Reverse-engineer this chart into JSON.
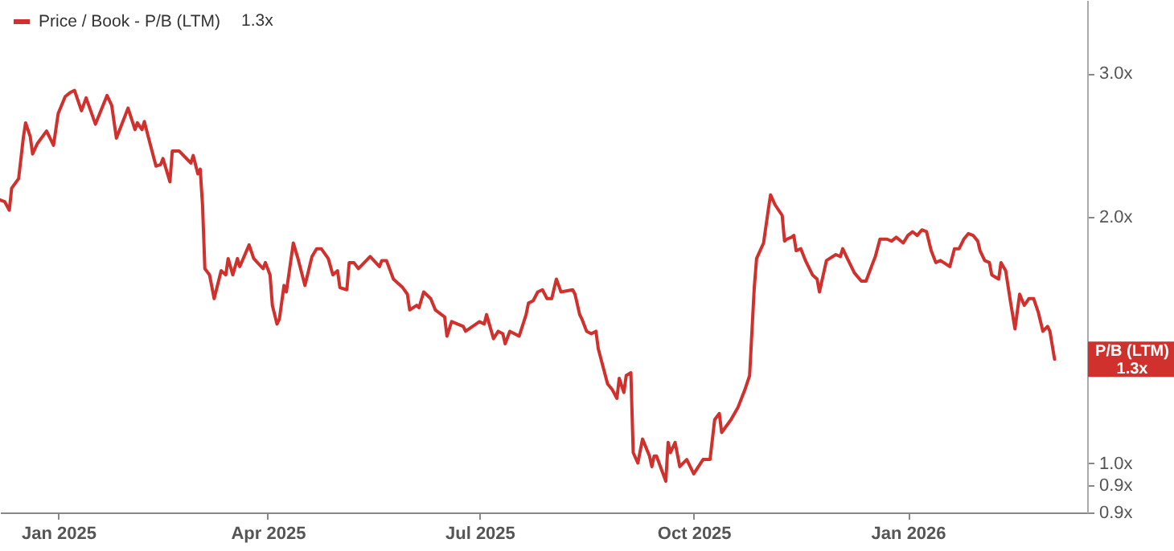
{
  "chart_data": {
    "type": "line",
    "log": "y",
    "legend": "top left",
    "xlim": [
      "2024-12-07",
      "2026-03-19"
    ],
    "xticks": [
      {
        "value": "2025-01-01",
        "label": "Jan 2025"
      },
      {
        "value": "2025-04-01",
        "label": "Apr 2025"
      },
      {
        "value": "2025-07-01",
        "label": "Jul 2025"
      },
      {
        "value": "2025-10-01",
        "label": "Oct 2025"
      },
      {
        "value": "2026-01-01",
        "label": "Jan 2026"
      }
    ],
    "ylim": [
      0.87,
      3.69
    ],
    "yticks": [
      {
        "value": 0.87,
        "label": "0.9x"
      },
      {
        "value": 0.94,
        "label": "0.9x"
      },
      {
        "value": 1,
        "label": "1.0x"
      },
      {
        "value": 2,
        "label": "2.0x"
      },
      {
        "value": 3,
        "label": "3.0x"
      }
    ],
    "annotations": [
      "1.3x",
      {
        "text": "P/B (LTM)\n1.3x",
        "x": "2026-03-05",
        "y": 1.34
      }
    ],
    "series": [
      {
        "name": "Price / Book - P/B (LTM)",
        "color": "#d0312d",
        "x": [
          "2024-12-07",
          "2024-12-09",
          "2024-12-11",
          "2024-12-12",
          "2024-12-15",
          "2024-12-17",
          "2024-12-18",
          "2024-12-20",
          "2024-12-21",
          "2024-12-23",
          "2024-12-27",
          "2024-12-30",
          "2025-01-01",
          "2025-01-04",
          "2025-01-06",
          "2025-01-08",
          "2025-01-11",
          "2025-01-13",
          "2025-01-17",
          "2025-01-22",
          "2025-01-24",
          "2025-01-26",
          "2025-01-31",
          "2025-02-03",
          "2025-02-04",
          "2025-02-06",
          "2025-02-07",
          "2025-02-09",
          "2025-02-12",
          "2025-02-14",
          "2025-02-15",
          "2025-02-18",
          "2025-02-19",
          "2025-02-22",
          "2025-02-27",
          "2025-02-28",
          "2025-03-02",
          "2025-03-03",
          "2025-03-04",
          "2025-03-05",
          "2025-03-07",
          "2025-03-09",
          "2025-03-12",
          "2025-03-14",
          "2025-03-15",
          "2025-03-17",
          "2025-03-19",
          "2025-03-20",
          "2025-03-24",
          "2025-03-26",
          "2025-03-30",
          "2025-03-31",
          "2025-04-02",
          "2025-04-03",
          "2025-04-05",
          "2025-04-06",
          "2025-04-08",
          "2025-04-09",
          "2025-04-12",
          "2025-04-14",
          "2025-04-17",
          "2025-04-20",
          "2025-04-22",
          "2025-04-24",
          "2025-04-27",
          "2025-04-29",
          "2025-05-01",
          "2025-05-02",
          "2025-05-05",
          "2025-05-06",
          "2025-05-08",
          "2025-05-10",
          "2025-05-15",
          "2025-05-19",
          "2025-05-20",
          "2025-05-22",
          "2025-05-25",
          "2025-05-29",
          "2025-05-31",
          "2025-06-01",
          "2025-06-04",
          "2025-06-05",
          "2025-06-07",
          "2025-06-10",
          "2025-06-12",
          "2025-06-16",
          "2025-06-17",
          "2025-06-19",
          "2025-06-24",
          "2025-06-25",
          "2025-07-01",
          "2025-07-03",
          "2025-07-04",
          "2025-07-07",
          "2025-07-09",
          "2025-07-11",
          "2025-07-12",
          "2025-07-14",
          "2025-07-18",
          "2025-07-21",
          "2025-07-22",
          "2025-07-24",
          "2025-07-26",
          "2025-07-28",
          "2025-07-30",
          "2025-08-01",
          "2025-08-03",
          "2025-08-05",
          "2025-08-10",
          "2025-08-11",
          "2025-08-13",
          "2025-08-14",
          "2025-08-16",
          "2025-08-18",
          "2025-08-20",
          "2025-08-21",
          "2025-08-25",
          "2025-08-27",
          "2025-08-29",
          "2025-08-30",
          "2025-09-01",
          "2025-09-02",
          "2025-09-04",
          "2025-09-05",
          "2025-09-07",
          "2025-09-09",
          "2025-09-12",
          "2025-09-13",
          "2025-09-14",
          "2025-09-15",
          "2025-09-19",
          "2025-09-20",
          "2025-09-21",
          "2025-09-23",
          "2025-09-25",
          "2025-09-28",
          "2025-10-01",
          "2025-10-05",
          "2025-10-08",
          "2025-10-10",
          "2025-10-12",
          "2025-10-13",
          "2025-10-17",
          "2025-10-20",
          "2025-10-23",
          "2025-10-25",
          "2025-10-27",
          "2025-10-28",
          "2025-10-31",
          "2025-11-02",
          "2025-11-03",
          "2025-11-05",
          "2025-11-08",
          "2025-11-09",
          "2025-11-10",
          "2025-11-12",
          "2025-11-13",
          "2025-11-14",
          "2025-11-16",
          "2025-11-18",
          "2025-11-21",
          "2025-11-23",
          "2025-11-24",
          "2025-11-27",
          "2025-12-01",
          "2025-12-03",
          "2025-12-04",
          "2025-12-06",
          "2025-12-09",
          "2025-12-12",
          "2025-12-14",
          "2025-12-17",
          "2025-12-18",
          "2025-12-20",
          "2025-12-23",
          "2025-12-25",
          "2025-12-27",
          "2025-12-30",
          "2026-01-01",
          "2026-01-03",
          "2026-01-05",
          "2026-01-07",
          "2026-01-09",
          "2026-01-11",
          "2026-01-13",
          "2026-01-15",
          "2026-01-19",
          "2026-01-21",
          "2026-01-23",
          "2026-01-25",
          "2026-01-27",
          "2026-01-29",
          "2026-01-31",
          "2026-02-01",
          "2026-02-03",
          "2026-02-05",
          "2026-02-06",
          "2026-02-09",
          "2026-02-10",
          "2026-02-12",
          "2026-02-14",
          "2026-02-16",
          "2026-02-18",
          "2026-02-20",
          "2026-02-22",
          "2026-02-24",
          "2026-02-26",
          "2026-02-28",
          "2026-03-02",
          "2026-03-03",
          "2026-03-05"
        ],
        "values": [
          2.1,
          2.09,
          2.04,
          2.17,
          2.23,
          2.5,
          2.61,
          2.51,
          2.39,
          2.46,
          2.55,
          2.45,
          2.68,
          2.81,
          2.84,
          2.86,
          2.7,
          2.8,
          2.6,
          2.82,
          2.74,
          2.5,
          2.72,
          2.56,
          2.61,
          2.56,
          2.62,
          2.49,
          2.31,
          2.32,
          2.36,
          2.21,
          2.41,
          2.41,
          2.33,
          2.38,
          2.26,
          2.29,
          2.07,
          1.73,
          1.7,
          1.59,
          1.72,
          1.7,
          1.78,
          1.7,
          1.78,
          1.74,
          1.85,
          1.78,
          1.73,
          1.76,
          1.7,
          1.56,
          1.48,
          1.5,
          1.65,
          1.62,
          1.86,
          1.78,
          1.65,
          1.79,
          1.83,
          1.83,
          1.78,
          1.7,
          1.72,
          1.64,
          1.63,
          1.76,
          1.76,
          1.73,
          1.79,
          1.74,
          1.77,
          1.77,
          1.68,
          1.64,
          1.61,
          1.54,
          1.56,
          1.55,
          1.62,
          1.59,
          1.54,
          1.51,
          1.43,
          1.49,
          1.47,
          1.45,
          1.49,
          1.48,
          1.52,
          1.42,
          1.45,
          1.44,
          1.4,
          1.45,
          1.43,
          1.52,
          1.57,
          1.58,
          1.62,
          1.63,
          1.59,
          1.59,
          1.68,
          1.62,
          1.63,
          1.61,
          1.52,
          1.5,
          1.45,
          1.44,
          1.45,
          1.38,
          1.25,
          1.23,
          1.2,
          1.27,
          1.22,
          1.28,
          1.29,
          1.03,
          1.0,
          1.07,
          1.02,
          0.99,
          1.02,
          1.02,
          0.95,
          1.06,
          1.03,
          1.06,
          0.99,
          1.01,
          0.97,
          1.01,
          1.01,
          1.13,
          1.15,
          1.09,
          1.13,
          1.17,
          1.23,
          1.28,
          1.64,
          1.78,
          1.86,
          2.04,
          2.13,
          2.07,
          2.01,
          1.87,
          1.88,
          1.89,
          1.9,
          1.82,
          1.83,
          1.77,
          1.7,
          1.68,
          1.62,
          1.77,
          1.8,
          1.79,
          1.83,
          1.78,
          1.71,
          1.67,
          1.67,
          1.76,
          1.79,
          1.88,
          1.88,
          1.87,
          1.89,
          1.86,
          1.9,
          1.92,
          1.9,
          1.93,
          1.92,
          1.82,
          1.76,
          1.77,
          1.74,
          1.83,
          1.83,
          1.88,
          1.91,
          1.9,
          1.87,
          1.82,
          1.77,
          1.76,
          1.7,
          1.68,
          1.76,
          1.72,
          1.58,
          1.46,
          1.61,
          1.56,
          1.59,
          1.59,
          1.53,
          1.45,
          1.47,
          1.45,
          1.34
        ]
      }
    ]
  }
}
